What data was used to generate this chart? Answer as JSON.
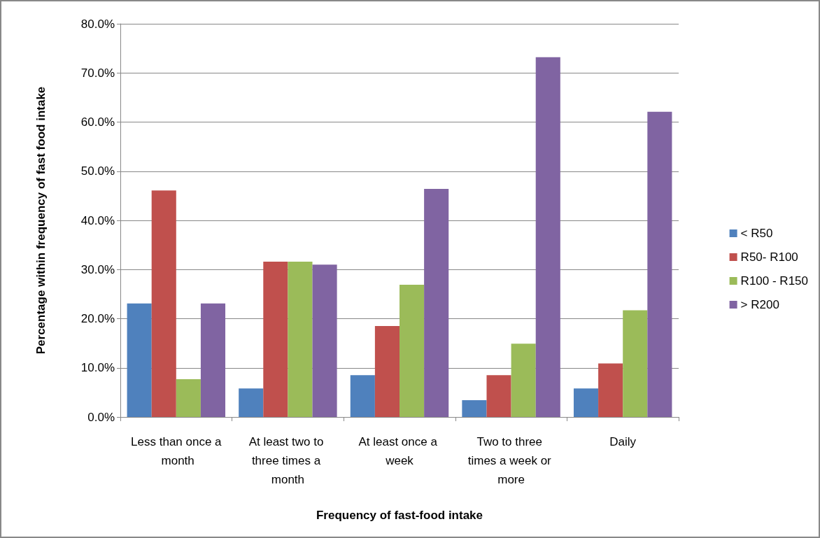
{
  "chart_data": {
    "type": "bar",
    "xlabel": "Frequency of fast-food intake",
    "ylabel": "Percentage within frequency of fast food intake",
    "categories": [
      "Less than once a month",
      "At least two to three times a month",
      "At least once a week",
      "Two to three times a week or more",
      "Daily"
    ],
    "series": [
      {
        "name": "< R50",
        "color": "#4f81bd",
        "values": [
          23.1,
          5.8,
          8.5,
          3.4,
          5.8
        ]
      },
      {
        "name": "R50- R100",
        "color": "#c0504d",
        "values": [
          46.1,
          31.6,
          18.5,
          8.5,
          10.9
        ]
      },
      {
        "name": "R100 - R150",
        "color": "#9bbb59",
        "values": [
          7.7,
          31.6,
          26.9,
          14.9,
          21.7
        ]
      },
      {
        "name": "> R200",
        "color": "#8064a2",
        "values": [
          23.1,
          31.0,
          46.4,
          73.2,
          62.1
        ]
      }
    ],
    "ylim": [
      0,
      80
    ],
    "yticks": [
      {
        "value": 0,
        "label": "0.0%"
      },
      {
        "value": 10,
        "label": "10.0%"
      },
      {
        "value": 20,
        "label": "20.0%"
      },
      {
        "value": 30,
        "label": "30.0%"
      },
      {
        "value": 40,
        "label": "40.0%"
      },
      {
        "value": 50,
        "label": "50.0%"
      },
      {
        "value": 60,
        "label": "60.0%"
      },
      {
        "value": 70,
        "label": "70.0%"
      },
      {
        "value": 80,
        "label": "80.0%"
      }
    ],
    "grid": "y",
    "legend": "right"
  }
}
